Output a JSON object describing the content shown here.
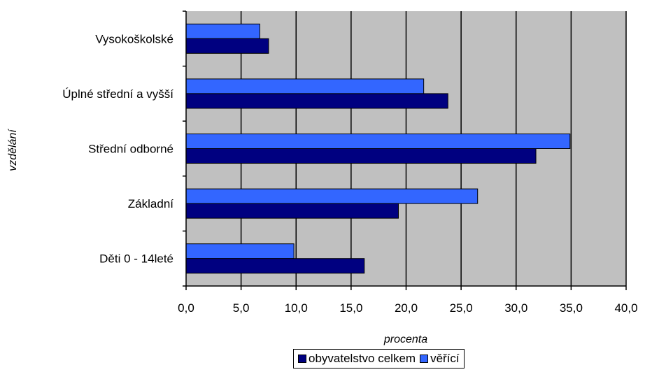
{
  "chart_data": {
    "type": "bar",
    "orientation": "horizontal",
    "categories": [
      "Vysokoškolské",
      "Úplné střední a vyšší",
      "Střední odborné",
      "Základní",
      "Děti 0 - 14leté"
    ],
    "series": [
      {
        "name": "obyvatelstvo celkem",
        "color": "#000080",
        "values": [
          7.5,
          23.8,
          31.8,
          19.3,
          16.2
        ]
      },
      {
        "name": "věřící",
        "color": "#3366ff",
        "values": [
          6.7,
          21.6,
          34.9,
          26.5,
          9.8
        ]
      }
    ],
    "xlabel": "procenta",
    "ylabel": "vzdělání",
    "xlim": [
      0,
      40
    ],
    "x_ticks": [
      "0,0",
      "5,0",
      "10,0",
      "15,0",
      "20,0",
      "25,0",
      "30,0",
      "35,0",
      "40,0"
    ],
    "plot_background": "#c0c0c0",
    "grid": true,
    "legend_position": "bottom"
  }
}
